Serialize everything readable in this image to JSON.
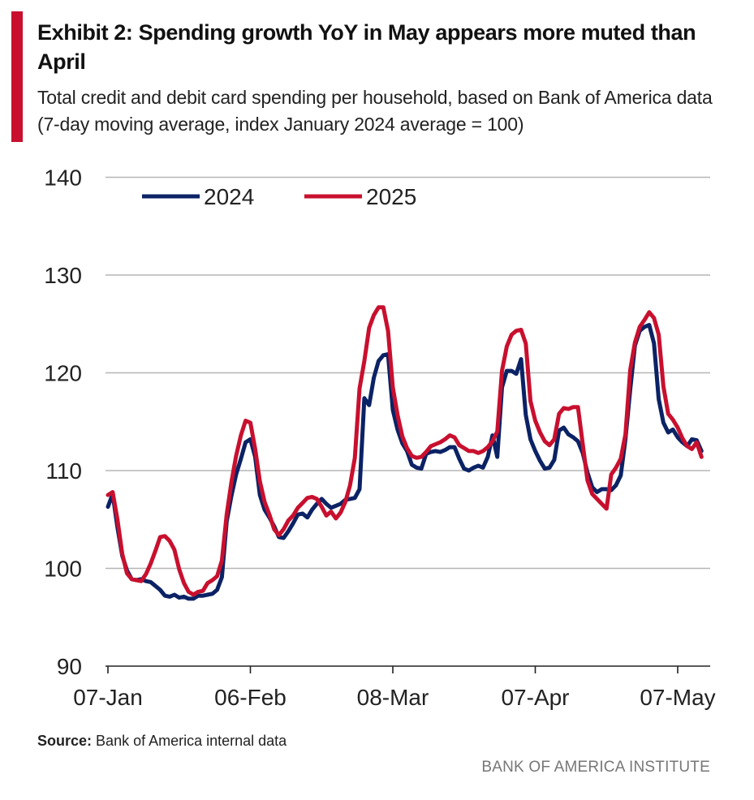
{
  "header": {
    "title": "Exhibit 2: Spending growth YoY in May appears more muted than April",
    "subtitle": "Total credit and debit card spending per household, based on Bank of America data (7-day moving average, index January 2024 average = 100)"
  },
  "footer": {
    "source_label": "Source:",
    "source_text": "Bank of America internal data",
    "brand": "BANK OF AMERICA INSTITUTE"
  },
  "colors": {
    "accent": "#c8102e",
    "series_2024": "#0b2265",
    "series_2025": "#c8102e",
    "grid": "#b5b5b5"
  },
  "chart_data": {
    "type": "line",
    "grid": "horizontal",
    "legend_position": "top-left",
    "ylim": [
      90,
      140
    ],
    "y_ticks": [
      90,
      100,
      110,
      120,
      130,
      140
    ],
    "xlim": [
      0,
      122
    ],
    "x_ticks": [
      {
        "label": "07-Jan",
        "x": 0
      },
      {
        "label": "06-Feb",
        "x": 30
      },
      {
        "label": "08-Mar",
        "x": 60
      },
      {
        "label": "07-Apr",
        "x": 90
      },
      {
        "label": "07-May",
        "x": 120
      }
    ],
    "series": [
      {
        "name": "2024",
        "points": [
          [
            0,
            106.3
          ],
          [
            1,
            107.6
          ],
          [
            2,
            104.2
          ],
          [
            3,
            101.3
          ],
          [
            4,
            99.8
          ],
          [
            5,
            98.9
          ],
          [
            6,
            98.8
          ],
          [
            7,
            98.9
          ],
          [
            8,
            98.7
          ],
          [
            9,
            98.6
          ],
          [
            10,
            98.2
          ],
          [
            11,
            97.8
          ],
          [
            12,
            97.2
          ],
          [
            13,
            97.1
          ],
          [
            14,
            97.3
          ],
          [
            15,
            97
          ],
          [
            16,
            97.1
          ],
          [
            17,
            96.9
          ],
          [
            18,
            96.9
          ],
          [
            19,
            97.2
          ],
          [
            20,
            97.2
          ],
          [
            21,
            97.3
          ],
          [
            22,
            97.4
          ],
          [
            23,
            97.8
          ],
          [
            24,
            99.1
          ],
          [
            25,
            104.8
          ],
          [
            26,
            107.4
          ],
          [
            27,
            109.6
          ],
          [
            28,
            111.2
          ],
          [
            29,
            112.9
          ],
          [
            30,
            113.2
          ],
          [
            31,
            111.4
          ],
          [
            32,
            107.5
          ],
          [
            33,
            106
          ],
          [
            34,
            105.2
          ],
          [
            35,
            104.3
          ],
          [
            36,
            103.2
          ],
          [
            37,
            103.1
          ],
          [
            38,
            103.8
          ],
          [
            39,
            104.6
          ],
          [
            40,
            105.5
          ],
          [
            41,
            105.6
          ],
          [
            42,
            105.2
          ],
          [
            43,
            106
          ],
          [
            44,
            106.6
          ],
          [
            45,
            107.1
          ],
          [
            46,
            106.6
          ],
          [
            47,
            106.2
          ],
          [
            48,
            106.4
          ],
          [
            49,
            106.6
          ],
          [
            50,
            107
          ],
          [
            51,
            107.1
          ],
          [
            52,
            107.2
          ],
          [
            53,
            108.1
          ],
          [
            54,
            117.4
          ],
          [
            55,
            116.7
          ],
          [
            56,
            119.5
          ],
          [
            57,
            121.2
          ],
          [
            58,
            121.8
          ],
          [
            59,
            121.9
          ],
          [
            60,
            116.2
          ],
          [
            61,
            114.2
          ],
          [
            62,
            112.8
          ],
          [
            63,
            112
          ],
          [
            64,
            110.6
          ],
          [
            65,
            110.3
          ],
          [
            66,
            110.2
          ],
          [
            67,
            111.7
          ],
          [
            68,
            111.9
          ],
          [
            69,
            112
          ],
          [
            70,
            111.9
          ],
          [
            71,
            112.1
          ],
          [
            72,
            112.4
          ],
          [
            73,
            112.4
          ],
          [
            74,
            111.2
          ],
          [
            75,
            110.2
          ],
          [
            76,
            110
          ],
          [
            77,
            110.3
          ],
          [
            78,
            110.5
          ],
          [
            79,
            110.3
          ],
          [
            80,
            111.4
          ],
          [
            81,
            113.6
          ],
          [
            82,
            111.4
          ],
          [
            83,
            118.5
          ],
          [
            84,
            120.2
          ],
          [
            85,
            120.2
          ],
          [
            86,
            119.9
          ],
          [
            87,
            121.4
          ],
          [
            88,
            115.7
          ],
          [
            89,
            113.2
          ],
          [
            90,
            112
          ],
          [
            91,
            111
          ],
          [
            92,
            110.2
          ],
          [
            93,
            110.3
          ],
          [
            94,
            111.1
          ],
          [
            95,
            114.1
          ],
          [
            96,
            114.4
          ],
          [
            97,
            113.7
          ],
          [
            98,
            113.4
          ],
          [
            99,
            113
          ],
          [
            100,
            111.8
          ],
          [
            101,
            109.8
          ],
          [
            102,
            108.3
          ],
          [
            103,
            107.8
          ],
          [
            104,
            108.1
          ],
          [
            105,
            108.1
          ],
          [
            106,
            108
          ],
          [
            107,
            108.5
          ],
          [
            108,
            109.5
          ],
          [
            109,
            113.2
          ],
          [
            110,
            118.3
          ],
          [
            111,
            122.8
          ],
          [
            112,
            124.3
          ],
          [
            113,
            124.7
          ],
          [
            114,
            124.9
          ],
          [
            115,
            123
          ],
          [
            116,
            117.3
          ],
          [
            117,
            114.9
          ],
          [
            118,
            113.9
          ],
          [
            119,
            114.2
          ],
          [
            120,
            113.4
          ],
          [
            121,
            112.9
          ],
          [
            122,
            112.5
          ],
          [
            123,
            113.2
          ],
          [
            124,
            113.1
          ],
          [
            125,
            112
          ]
        ]
      },
      {
        "name": "2025",
        "points": [
          [
            0,
            107.5
          ],
          [
            1,
            107.8
          ],
          [
            2,
            105
          ],
          [
            3,
            101.5
          ],
          [
            4,
            99.5
          ],
          [
            5,
            98.9
          ],
          [
            6,
            98.8
          ],
          [
            7,
            98.7
          ],
          [
            8,
            99.4
          ],
          [
            9,
            100.5
          ],
          [
            10,
            101.8
          ],
          [
            11,
            103.2
          ],
          [
            12,
            103.3
          ],
          [
            13,
            102.8
          ],
          [
            14,
            101.9
          ],
          [
            15,
            99.9
          ],
          [
            16,
            98.5
          ],
          [
            17,
            97.6
          ],
          [
            18,
            97.3
          ],
          [
            19,
            97.6
          ],
          [
            20,
            97.7
          ],
          [
            21,
            98.5
          ],
          [
            22,
            98.8
          ],
          [
            23,
            99.2
          ],
          [
            24,
            100.8
          ],
          [
            25,
            105.5
          ],
          [
            26,
            108.8
          ],
          [
            27,
            111.5
          ],
          [
            28,
            113.6
          ],
          [
            29,
            115.1
          ],
          [
            30,
            114.9
          ],
          [
            31,
            112.2
          ],
          [
            32,
            108.9
          ],
          [
            33,
            106.8
          ],
          [
            34,
            105.5
          ],
          [
            35,
            104
          ],
          [
            36,
            103.4
          ],
          [
            37,
            104
          ],
          [
            38,
            104.9
          ],
          [
            39,
            105.4
          ],
          [
            40,
            106.2
          ],
          [
            41,
            106.7
          ],
          [
            42,
            107.2
          ],
          [
            43,
            107.3
          ],
          [
            44,
            107.1
          ],
          [
            45,
            106.3
          ],
          [
            46,
            105.4
          ],
          [
            47,
            105.8
          ],
          [
            48,
            105.1
          ],
          [
            49,
            105.7
          ],
          [
            50,
            106.8
          ],
          [
            51,
            108.5
          ],
          [
            52,
            111.3
          ],
          [
            53,
            118.4
          ],
          [
            54,
            121.2
          ],
          [
            55,
            124.6
          ],
          [
            56,
            125.9
          ],
          [
            57,
            126.7
          ],
          [
            58,
            126.7
          ],
          [
            59,
            124.3
          ],
          [
            60,
            118.5
          ],
          [
            61,
            115.7
          ],
          [
            62,
            113.5
          ],
          [
            63,
            112.3
          ],
          [
            64,
            111.5
          ],
          [
            65,
            111.3
          ],
          [
            66,
            111.4
          ],
          [
            67,
            111.9
          ],
          [
            68,
            112.5
          ],
          [
            69,
            112.7
          ],
          [
            70,
            112.9
          ],
          [
            71,
            113.2
          ],
          [
            72,
            113.6
          ],
          [
            73,
            113.4
          ],
          [
            74,
            112.6
          ],
          [
            75,
            112.3
          ],
          [
            76,
            112
          ],
          [
            77,
            112
          ],
          [
            78,
            111.8
          ],
          [
            79,
            112
          ],
          [
            80,
            112.4
          ],
          [
            81,
            113
          ],
          [
            82,
            114
          ],
          [
            83,
            120.2
          ],
          [
            84,
            122.7
          ],
          [
            85,
            123.9
          ],
          [
            86,
            124.3
          ],
          [
            87,
            124.4
          ],
          [
            88,
            123
          ],
          [
            89,
            117.1
          ],
          [
            90,
            115.1
          ],
          [
            91,
            113.9
          ],
          [
            92,
            113
          ],
          [
            93,
            112.6
          ],
          [
            94,
            113.2
          ],
          [
            95,
            115.8
          ],
          [
            96,
            116.4
          ],
          [
            97,
            116.3
          ],
          [
            98,
            116.5
          ],
          [
            99,
            116.5
          ],
          [
            100,
            112.7
          ],
          [
            101,
            109
          ],
          [
            102,
            107.6
          ],
          [
            103,
            107.1
          ],
          [
            104,
            106.6
          ],
          [
            105,
            106.1
          ],
          [
            106,
            109.6
          ],
          [
            107,
            110.3
          ],
          [
            108,
            111.2
          ],
          [
            109,
            113.7
          ],
          [
            110,
            120.3
          ],
          [
            111,
            123.1
          ],
          [
            112,
            124.7
          ],
          [
            113,
            125.4
          ],
          [
            114,
            126.2
          ],
          [
            115,
            125.6
          ],
          [
            116,
            123.9
          ],
          [
            117,
            118.6
          ],
          [
            118,
            115.8
          ],
          [
            119,
            115.2
          ],
          [
            120,
            114.4
          ],
          [
            121,
            113.3
          ],
          [
            122,
            112.5
          ],
          [
            123,
            112.2
          ],
          [
            124,
            112.9
          ],
          [
            125,
            111.4
          ]
        ]
      }
    ]
  }
}
